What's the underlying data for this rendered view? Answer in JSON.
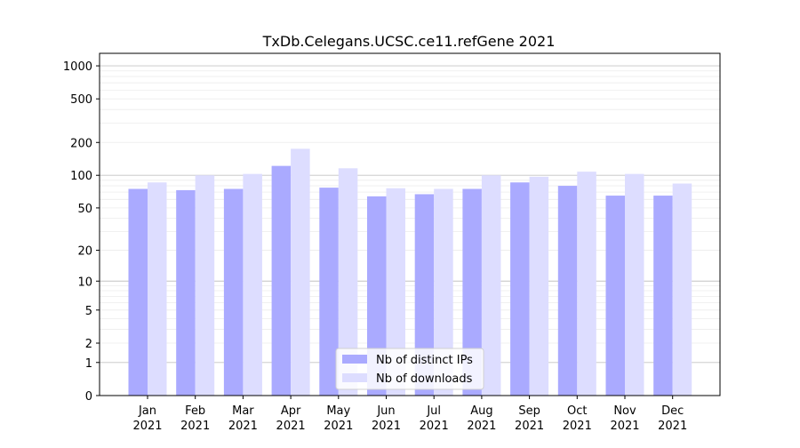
{
  "chart_data": {
    "type": "bar",
    "title": "TxDb.Celegans.UCSC.ce11.refGene 2021",
    "xlabel": "",
    "ylabel": "",
    "y_scale": "symlog",
    "ylim": [
      0,
      1300
    ],
    "y_ticks": [
      0,
      1,
      2,
      5,
      10,
      20,
      50,
      100,
      200,
      500,
      1000
    ],
    "y_tick_labels": [
      "0",
      "1",
      "2",
      "5",
      "10",
      "20",
      "50",
      "100",
      "200",
      "500",
      "1000"
    ],
    "categories": [
      [
        "Jan",
        "2021"
      ],
      [
        "Feb",
        "2021"
      ],
      [
        "Mar",
        "2021"
      ],
      [
        "Apr",
        "2021"
      ],
      [
        "May",
        "2021"
      ],
      [
        "Jun",
        "2021"
      ],
      [
        "Jul",
        "2021"
      ],
      [
        "Aug",
        "2021"
      ],
      [
        "Sep",
        "2021"
      ],
      [
        "Oct",
        "2021"
      ],
      [
        "Nov",
        "2021"
      ],
      [
        "Dec",
        "2021"
      ]
    ],
    "series": [
      {
        "name": "Nb of distinct IPs",
        "color": "#aaaaff",
        "values": [
          75,
          73,
          75,
          122,
          77,
          64,
          67,
          75,
          86,
          80,
          65,
          65
        ]
      },
      {
        "name": "Nb of downloads",
        "color": "#ddddff",
        "values": [
          86,
          100,
          103,
          175,
          116,
          76,
          75,
          100,
          97,
          108,
          103,
          84
        ]
      }
    ],
    "grid": true,
    "legend": "lower-center"
  }
}
